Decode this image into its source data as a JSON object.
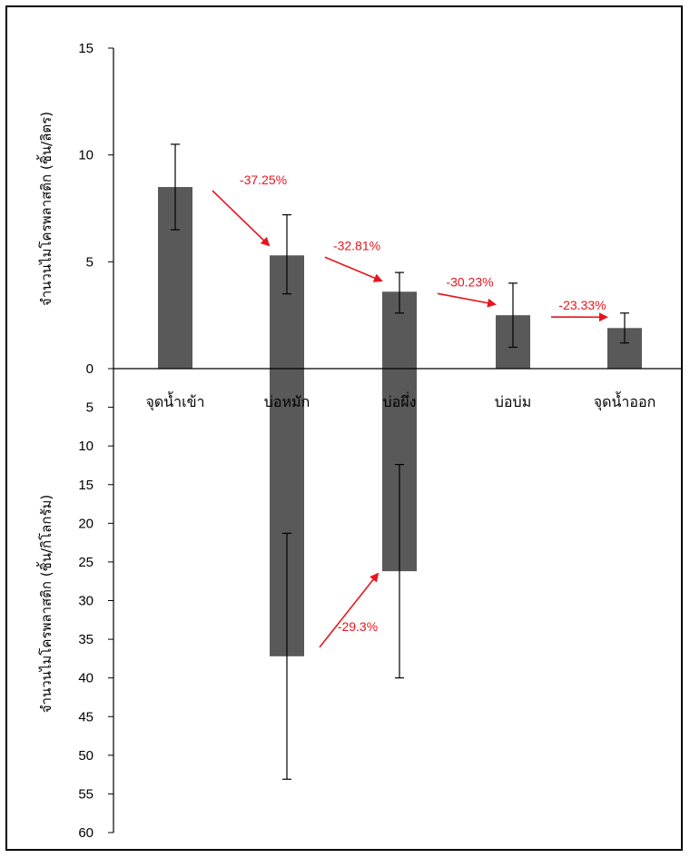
{
  "chart_data": {
    "type": "bar",
    "categories": [
      "จุดน้ำเข้า",
      "บ่อหมัก",
      "บ่อผึ่ง",
      "บ่อบ่ม",
      "จุดน้ำออก"
    ],
    "upper": {
      "ylabel": "จำนวนไมโครพลาสติก (ชิ้น/ลิตร)",
      "ylim": [
        0,
        15
      ],
      "ticks": [
        0,
        5,
        10,
        15
      ],
      "values": [
        8.5,
        5.3,
        3.6,
        2.5,
        1.9
      ],
      "error_low": [
        6.5,
        3.5,
        2.6,
        1.0,
        1.2
      ],
      "error_high": [
        10.5,
        7.2,
        4.5,
        4.0,
        2.6
      ]
    },
    "lower": {
      "ylabel": "จำนวนไมโครพลาสติก (ชิ้น/กิโลกรัม)",
      "ylim": [
        0,
        60
      ],
      "ticks": [
        5,
        10,
        15,
        20,
        25,
        30,
        35,
        40,
        45,
        50,
        55,
        60
      ],
      "values": [
        null,
        37.2,
        26.2,
        null,
        null
      ],
      "error_low": [
        null,
        21.3,
        12.4,
        null,
        null
      ],
      "error_high": [
        null,
        53.1,
        40.0,
        null,
        null
      ]
    },
    "annotations": [
      {
        "text": "-37.25%",
        "section": "upper",
        "from": 0,
        "to": 1
      },
      {
        "text": "-32.81%",
        "section": "upper",
        "from": 1,
        "to": 2
      },
      {
        "text": "-30.23%",
        "section": "upper",
        "from": 2,
        "to": 3
      },
      {
        "text": "-23.33%",
        "section": "upper",
        "from": 3,
        "to": 4
      },
      {
        "text": "-29.3%",
        "section": "lower",
        "from": 1,
        "to": 2
      }
    ],
    "colors": {
      "bar": "#595959",
      "annotation": "#e8141c",
      "axis": "#000000"
    }
  }
}
